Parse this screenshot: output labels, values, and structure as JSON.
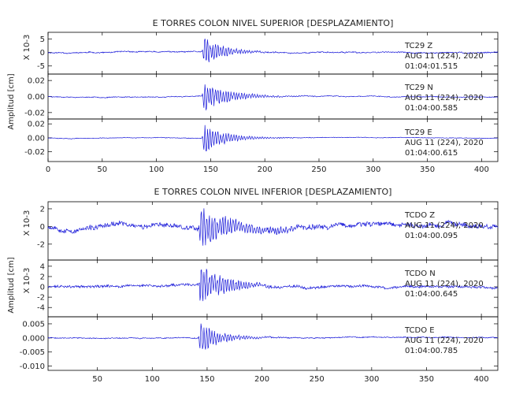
{
  "chart_data": [
    {
      "type": "line",
      "title": "E TORRES COLON NIVEL SUPERIOR [DESPLAZAMIENTO]",
      "ylabel": "Amplitud [cm]",
      "xlim": [
        0,
        415
      ],
      "xticks": [
        0,
        50,
        100,
        150,
        200,
        250,
        300,
        350,
        400
      ],
      "event_x": 143,
      "panels": [
        {
          "station": "TC29",
          "component": "Z",
          "date": "AUG 11 (224), 2020",
          "time": "01:04:01.515",
          "scale_label": "X 10-3",
          "ylim": [
            -8,
            7.5
          ],
          "yticks": [
            -5,
            0,
            5
          ],
          "noise": 0.35,
          "peak": 6.5,
          "decay": 18,
          "seed": 11
        },
        {
          "station": "TC29",
          "component": "N",
          "date": "AUG 11 (224), 2020",
          "time": "01:04:00.585",
          "scale_label": "",
          "ylim": [
            -0.028,
            0.028
          ],
          "yticks": [
            -0.02,
            0.0,
            0.02
          ],
          "ytick_labels": [
            "-0.02",
            "0.00",
            "0.02"
          ],
          "noise": 0.0008,
          "peak": 0.022,
          "decay": 22,
          "seed": 23
        },
        {
          "station": "TC29",
          "component": "E",
          "date": "AUG 11 (224), 2020",
          "time": "01:04:00.615",
          "scale_label": "",
          "ylim": [
            -0.034,
            0.027
          ],
          "yticks": [
            -0.02,
            0.0,
            0.02
          ],
          "ytick_labels": [
            "-0.02",
            "0.00",
            "0.02"
          ],
          "noise": 0.0007,
          "peak": 0.024,
          "decay": 20,
          "seed": 37
        }
      ]
    },
    {
      "type": "line",
      "title": "E TORRES COLON NIVEL INFERIOR [DESPLAZAMIENTO]",
      "ylabel": "Amplitud [cm]",
      "xlim": [
        5,
        415
      ],
      "xticks": [
        50,
        100,
        150,
        200,
        250,
        300,
        350,
        400
      ],
      "event_x": 143,
      "panels": [
        {
          "station": "TCDO",
          "component": "Z",
          "date": "AUG 11 (224), 2020",
          "time": "01:04:00.095",
          "scale_label": "X 10-3",
          "ylim": [
            -3.8,
            2.8
          ],
          "yticks": [
            -2,
            0,
            2
          ],
          "noise": 0.45,
          "peak": 2.7,
          "decay": 30,
          "seed": 53
        },
        {
          "station": "TCDO",
          "component": "N",
          "date": "AUG 11 (224), 2020",
          "time": "01:04:00.645",
          "scale_label": "X 10-3",
          "ylim": [
            -5.8,
            5.2
          ],
          "yticks": [
            -4,
            -2,
            0,
            2,
            4
          ],
          "noise": 0.4,
          "peak": 4.8,
          "decay": 22,
          "seed": 71
        },
        {
          "station": "TCDO",
          "component": "E",
          "date": "AUG 11 (224), 2020",
          "time": "01:04:00.785",
          "scale_label": "",
          "ylim": [
            -0.0115,
            0.0075
          ],
          "yticks": [
            -0.01,
            -0.005,
            0.0,
            0.005
          ],
          "ytick_labels": [
            "-0.010",
            "-0.005",
            "0.000",
            "0.005"
          ],
          "noise": 0.0003,
          "peak": 0.007,
          "decay": 18,
          "seed": 89
        }
      ]
    }
  ],
  "colors": {
    "trace": "#1a1ad9",
    "frame": "#000000",
    "text": "#222222"
  }
}
